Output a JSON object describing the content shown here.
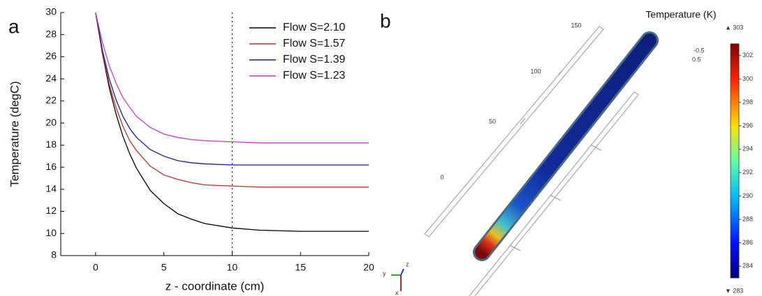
{
  "chart_data": {
    "type": "line",
    "panel_label": "a",
    "x_label": "z - coordinate (cm)",
    "y_label": "Temperature (degC)",
    "x": [
      0,
      0.5,
      1,
      1.5,
      2,
      2.5,
      3,
      4,
      5,
      6,
      7,
      8,
      10,
      12,
      15,
      20
    ],
    "series": [
      {
        "name": "Flow S=2.10",
        "color": "#000000",
        "values": [
          30,
          26.3,
          23.2,
          20.8,
          18.8,
          17.2,
          15.9,
          13.9,
          12.7,
          11.8,
          11.3,
          10.9,
          10.5,
          10.3,
          10.2,
          10.2
        ]
      },
      {
        "name": "Flow S=1.57",
        "color": "#b8312b",
        "values": [
          30,
          26.4,
          23.5,
          21.4,
          19.7,
          18.4,
          17.5,
          16.1,
          15.3,
          14.9,
          14.6,
          14.4,
          14.3,
          14.2,
          14.2,
          14.2
        ]
      },
      {
        "name": "Flow S=1.39",
        "color": "#1c1c8c",
        "values": [
          30,
          26.6,
          24.0,
          22.1,
          20.6,
          19.5,
          18.7,
          17.6,
          17.0,
          16.6,
          16.4,
          16.3,
          16.2,
          16.2,
          16.2,
          16.2
        ]
      },
      {
        "name": "Flow S=1.23",
        "color": "#c23cc2",
        "values": [
          30,
          27.3,
          25.2,
          23.6,
          22.3,
          21.4,
          20.6,
          19.6,
          19.0,
          18.7,
          18.5,
          18.4,
          18.3,
          18.2,
          18.2,
          18.2
        ]
      }
    ],
    "xlim": [
      -2.55,
      20
    ],
    "ylim": [
      8,
      30
    ],
    "xticks": [
      0,
      5,
      10,
      15,
      20
    ],
    "yticks": [
      8,
      10,
      12,
      14,
      16,
      18,
      20,
      22,
      24,
      26,
      28,
      30
    ],
    "vline": 10,
    "legend": "upper right",
    "grid": false
  },
  "render": {
    "panel_label": "b",
    "axis_labels": [
      "150",
      "100",
      "50",
      "0"
    ],
    "small_labels": [
      "-0.5",
      "0.5"
    ],
    "triad": [
      "y",
      "z",
      "x"
    ],
    "colorbar": {
      "title": "Temperature (K)",
      "max": {
        "value": 303,
        "label": "▲ 303"
      },
      "min": {
        "value": 283,
        "label": "▼ 283"
      },
      "ticks": [
        284,
        286,
        288,
        290,
        292,
        294,
        296,
        298,
        300,
        302
      ]
    }
  }
}
